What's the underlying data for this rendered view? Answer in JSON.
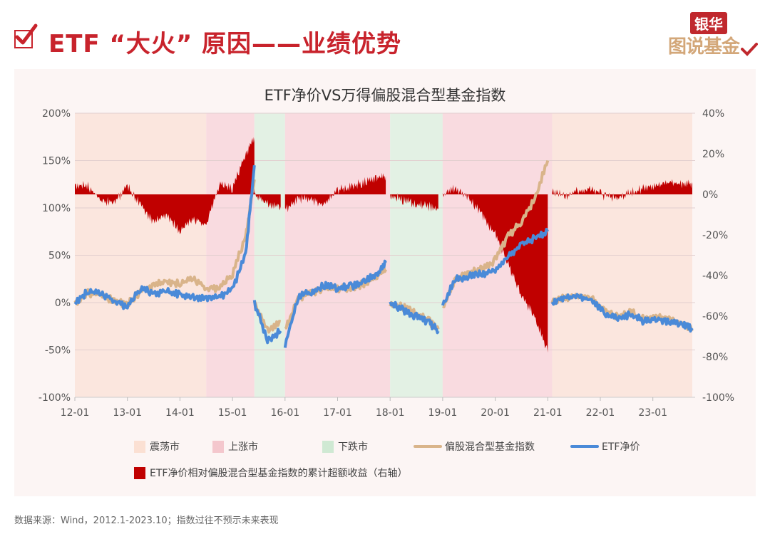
{
  "header": {
    "title": "ETF “大火” 原因——业绩优势",
    "logo_top": "银华",
    "logo_bottom": "图说基金"
  },
  "footer": {
    "source": "数据来源：Wind，2012.1-2023.10；指数过往不预示未来表现"
  },
  "colors": {
    "brand_red": "#c8232c",
    "excess_area": "#c00000",
    "index_line": "#d9b48a",
    "etf_line": "#4a8ad8",
    "zone_oscillating": "#fbe6de",
    "zone_bull": "#f9dbe0",
    "zone_bear": "#e3f1e4"
  },
  "legend": {
    "oscillating": "震荡市",
    "bull": "上涨市",
    "bear": "下跌市",
    "index": "偏股混合型基金指数",
    "etf": "ETF净价",
    "excess": "ETF净价相对偏股混合型基金指数的累计超额收益（右轴）"
  },
  "chart_data": {
    "type": "line",
    "title": "ETF净价VS万得偏股混合型基金指数",
    "xlabel": "",
    "ylabel": "",
    "x_ticks": [
      "12-01",
      "13-01",
      "14-01",
      "15-01",
      "16-01",
      "17-01",
      "18-01",
      "19-01",
      "20-01",
      "21-01",
      "22-01",
      "23-01"
    ],
    "left_axis": {
      "ticks": [
        "200%",
        "150%",
        "100%",
        "50%",
        "0%",
        "-50%",
        "-100%"
      ],
      "range": [
        -100,
        200
      ]
    },
    "right_axis": {
      "ticks": [
        "40%",
        "20%",
        "0%",
        "-20%",
        "-40%",
        "-60%",
        "-80%",
        "-100%"
      ],
      "range": [
        -100,
        40
      ]
    },
    "grid": true,
    "legend_position": "bottom",
    "regimes": [
      {
        "label": "震荡市",
        "start": "2012-01",
        "end": "2014-07"
      },
      {
        "label": "上涨市",
        "start": "2014-07",
        "end": "2015-06"
      },
      {
        "label": "下跌市",
        "start": "2015-06",
        "end": "2016-01"
      },
      {
        "label": "上涨市",
        "start": "2016-01",
        "end": "2018-01"
      },
      {
        "label": "下跌市",
        "start": "2018-01",
        "end": "2019-01"
      },
      {
        "label": "上涨市",
        "start": "2019-01",
        "end": "2021-02"
      },
      {
        "label": "震荡市",
        "start": "2021-02",
        "end": "2023-10"
      }
    ],
    "x": [
      "2012-01",
      "2012-04",
      "2012-07",
      "2012-10",
      "2013-01",
      "2013-04",
      "2013-07",
      "2013-10",
      "2014-01",
      "2014-04",
      "2014-07",
      "2014-10",
      "2015-01",
      "2015-04",
      "2015-06",
      "2015-06b",
      "2015-09",
      "2015-12",
      "2016-01",
      "2016-04",
      "2016-07",
      "2016-10",
      "2017-01",
      "2017-04",
      "2017-07",
      "2017-10",
      "2017-12",
      "2018-01",
      "2018-04",
      "2018-07",
      "2018-10",
      "2018-12",
      "2019-01",
      "2019-04",
      "2019-07",
      "2019-10",
      "2020-01",
      "2020-04",
      "2020-07",
      "2020-10",
      "2021-01",
      "2021-02",
      "2021-05",
      "2021-08",
      "2021-11",
      "2022-02",
      "2022-05",
      "2022-08",
      "2022-11",
      "2023-02",
      "2023-05",
      "2023-08",
      "2023-10"
    ],
    "series": [
      {
        "name": "偏股混合型基金指数",
        "axis": "left",
        "values": [
          0,
          10,
          8,
          2,
          -2,
          12,
          18,
          22,
          20,
          26,
          15,
          15,
          30,
          70,
          130,
          0,
          -30,
          -20,
          -30,
          5,
          10,
          15,
          15,
          15,
          20,
          28,
          35,
          0,
          -5,
          -12,
          -20,
          -28,
          -5,
          25,
          32,
          35,
          45,
          70,
          85,
          110,
          150,
          0,
          5,
          8,
          6,
          -10,
          -15,
          -10,
          -18,
          -15,
          -18,
          -22,
          -30
        ]
      },
      {
        "name": "ETF净价",
        "axis": "left",
        "values": [
          0,
          12,
          10,
          2,
          -5,
          15,
          10,
          12,
          8,
          5,
          5,
          5,
          15,
          50,
          145,
          0,
          -40,
          -30,
          -45,
          5,
          12,
          18,
          15,
          17,
          22,
          30,
          42,
          0,
          -8,
          -15,
          -22,
          -30,
          -2,
          25,
          28,
          30,
          35,
          50,
          60,
          68,
          75,
          0,
          5,
          6,
          3,
          -12,
          -17,
          -12,
          -20,
          -17,
          -20,
          -23,
          -27
        ]
      },
      {
        "name": "ETF净价相对偏股混合型基金指数的累计超额收益（右轴）",
        "axis": "right",
        "type": "area",
        "values": [
          5,
          4,
          -3,
          -4,
          4,
          -5,
          -14,
          -10,
          -18,
          -12,
          -15,
          5,
          3,
          20,
          28,
          0,
          -5,
          -6,
          -8,
          -2,
          -3,
          -5,
          2,
          4,
          6,
          8,
          9,
          0,
          -3,
          -5,
          -6,
          -7,
          0,
          3,
          -2,
          -10,
          -20,
          -35,
          -50,
          -60,
          -78,
          1,
          -1,
          2,
          3,
          -1,
          -2,
          1,
          3,
          4,
          6,
          5,
          5
        ]
      }
    ]
  }
}
